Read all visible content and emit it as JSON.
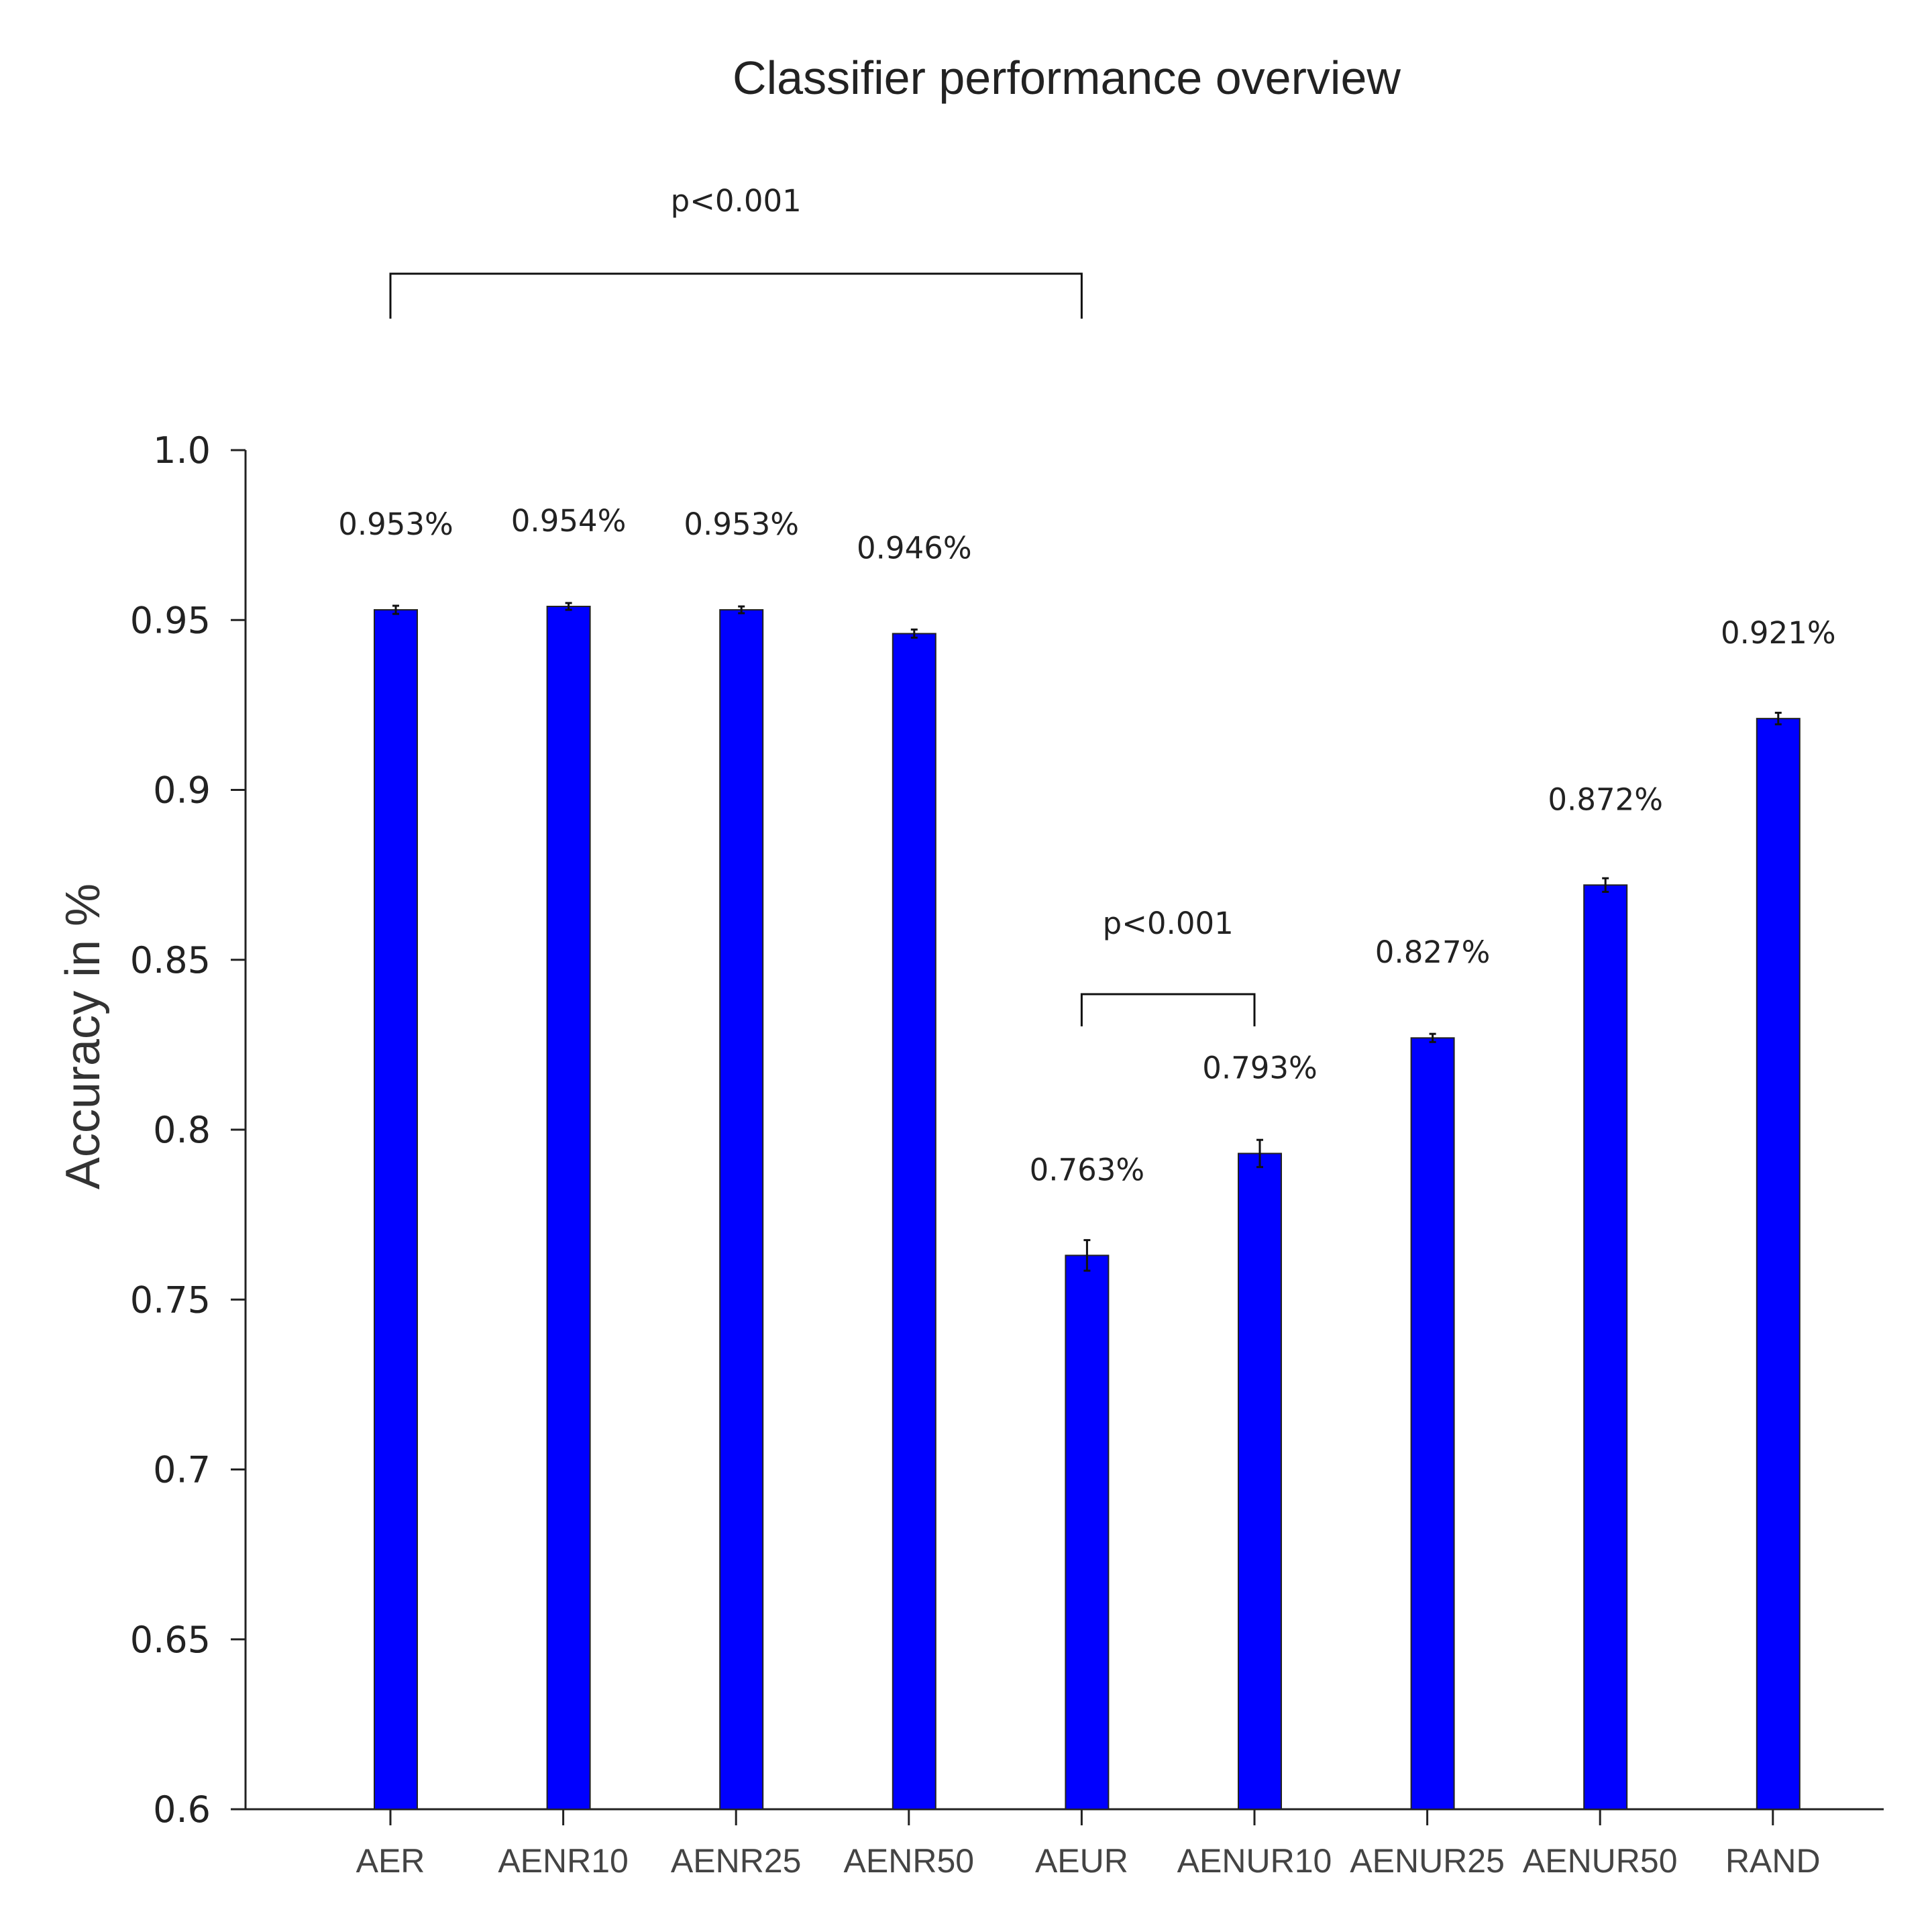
{
  "chart_data": {
    "type": "bar",
    "title": "Classifier performance overview",
    "xlabel": "",
    "ylabel": "Accuracy in %",
    "categories": [
      "AER",
      "AENR10",
      "AENR25",
      "AENR50",
      "AEUR",
      "AENUR10",
      "AENUR25",
      "AENUR50",
      "RAND"
    ],
    "values": [
      0.953,
      0.954,
      0.953,
      0.946,
      0.763,
      0.793,
      0.827,
      0.872,
      0.921
    ],
    "errors": [
      0.0012,
      0.001,
      0.001,
      0.0012,
      0.0045,
      0.004,
      0.0012,
      0.002,
      0.0017
    ],
    "value_labels": [
      "0.953%",
      "0.954%",
      "0.953%",
      "0.946%",
      "0.763%",
      "0.793%",
      "0.827%",
      "0.872%",
      "0.921%"
    ],
    "bar_color": "#0000ff",
    "ylim": [
      0.6,
      1.0
    ],
    "yticks": [
      0.6,
      0.65,
      0.7,
      0.75,
      0.8,
      0.85,
      0.9,
      0.95,
      1.0
    ],
    "ytick_labels": [
      "0.6",
      "0.65",
      "0.7",
      "0.75",
      "0.8",
      "0.85",
      "0.9",
      "0.95",
      "1.0"
    ],
    "grid": false,
    "legend": "none",
    "significance": [
      {
        "from": "AER",
        "to": "AEUR",
        "label": "p<0.001"
      },
      {
        "from": "AEUR",
        "to": "AENUR10",
        "label": "p<0.001"
      }
    ]
  }
}
